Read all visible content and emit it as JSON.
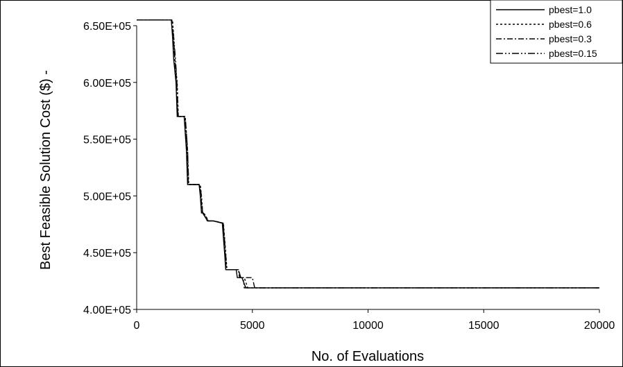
{
  "chart_data": {
    "type": "line",
    "title": "",
    "xlabel": "No. of Evaluations",
    "ylabel": "Best Feasible Solution Cost ($)  -",
    "xlim": [
      0,
      20000
    ],
    "ylim": [
      400000,
      650000
    ],
    "xticks": [
      0,
      5000,
      10000,
      15000,
      20000
    ],
    "xtick_labels": [
      "0",
      "5000",
      "10000",
      "15000",
      "20000"
    ],
    "yticks": [
      400000,
      450000,
      500000,
      550000,
      600000,
      650000
    ],
    "ytick_labels": [
      "4.00E+05",
      "4.50E+05",
      "5.00E+05",
      "5.50E+05",
      "6.00E+05",
      "6.50E+05"
    ],
    "grid": false,
    "legend_position": "top-right",
    "series": [
      {
        "name": "pbest=1.0",
        "dash": "",
        "x": [
          0,
          1500,
          1550,
          1600,
          1700,
          1750,
          2050,
          2150,
          2200,
          2700,
          2750,
          2800,
          2850,
          3000,
          3050,
          3300,
          3700,
          3800,
          3850,
          4300,
          4350,
          4500,
          4550,
          4700,
          4750,
          20000
        ],
        "y": [
          655000,
          655000,
          640000,
          620000,
          600000,
          570000,
          570000,
          540000,
          510000,
          510000,
          500000,
          485000,
          485000,
          480000,
          478000,
          478000,
          476000,
          450000,
          435000,
          435000,
          428000,
          428000,
          428000,
          420000,
          419000,
          419000
        ]
      },
      {
        "name": "pbest=0.6",
        "dash": "3,3",
        "x": [
          0,
          1550,
          1600,
          1650,
          1750,
          1800,
          2100,
          2200,
          2250,
          2750,
          2800,
          2850,
          2900,
          3050,
          3100,
          3350,
          3750,
          3850,
          3900,
          4400,
          4450,
          4600,
          4650,
          4800,
          20000
        ],
        "y": [
          655000,
          655000,
          640000,
          620000,
          600000,
          570000,
          570000,
          540000,
          510000,
          510000,
          500000,
          485000,
          485000,
          480000,
          478000,
          478000,
          476000,
          450000,
          435000,
          435000,
          428000,
          428000,
          428000,
          419000,
          419000
        ]
      },
      {
        "name": "pbest=0.3",
        "dash": "8,3,2,3",
        "x": [
          0,
          1500,
          1580,
          1650,
          1720,
          1780,
          2080,
          2180,
          2230,
          2720,
          2780,
          2830,
          2880,
          3020,
          3080,
          3320,
          3720,
          3820,
          3870,
          4400,
          4500,
          5000,
          5100,
          20000
        ],
        "y": [
          655000,
          655000,
          640000,
          620000,
          600000,
          570000,
          570000,
          540000,
          510000,
          510000,
          500000,
          485000,
          485000,
          480000,
          478000,
          478000,
          476000,
          450000,
          435000,
          435000,
          428000,
          428000,
          419000,
          419000
        ]
      },
      {
        "name": "pbest=0.15",
        "dash": "10,3,2,3,2,3",
        "x": [
          0,
          1520,
          1600,
          1680,
          1740,
          1800,
          2100,
          2200,
          2250,
          2730,
          2800,
          2850,
          2900,
          3040,
          3090,
          3340,
          3740,
          3840,
          3900,
          4400,
          4450,
          4600,
          4650,
          20000
        ],
        "y": [
          655000,
          655000,
          640000,
          620000,
          600000,
          570000,
          570000,
          540000,
          510000,
          510000,
          500000,
          485000,
          485000,
          480000,
          478000,
          478000,
          476000,
          450000,
          435000,
          435000,
          428000,
          428000,
          419000,
          419000
        ]
      }
    ]
  }
}
